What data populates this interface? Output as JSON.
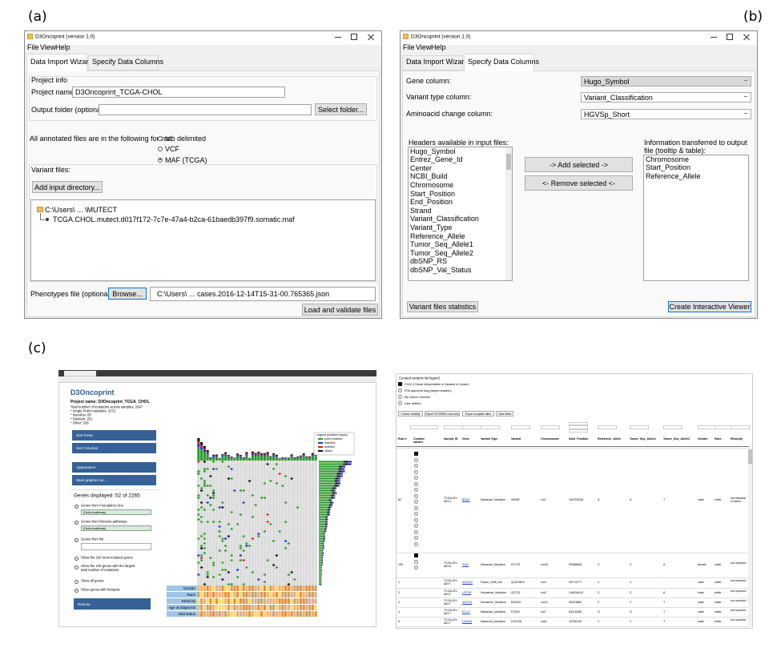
{
  "panel_labels": [
    "(a)",
    "(b)",
    "(c)"
  ],
  "import_window": {
    "title": "D3Oncoprint (version 1.0)",
    "menu": [
      "File",
      "View",
      "Help"
    ],
    "tabs": [
      "Data Import Wizard",
      "Specify Data Columns"
    ],
    "project_info": "Project info",
    "project_name_label": "Project name:",
    "project_name": "D3Oncoprint_TCGA-CHOL",
    "output_folder_label": "Output folder (optional):",
    "select_folder_button": "Select folder...",
    "format_label": "All annotated files are in the following format:",
    "formats": [
      "tab delimited",
      "VCF",
      "MAF (TCGA)"
    ],
    "variant_files_label": "Variant files:",
    "add_directory_button": "Add input directory...",
    "tree": [
      "C:\\Users\\  ...  \\MUTECT",
      "TCGA.CHOL.mutect.d017f172-7c7e-47a4-b2ca-61baedb397f9.somatic.maf"
    ],
    "phenotypes_label": "Phenotypes file (optional):",
    "browse_button": "Browse...",
    "phenotypes_path": "C:\\Users\\  ...  cases.2016-12-14T15-31-00.765365.json",
    "load_button": "Load and validate files"
  },
  "columns_window": {
    "title": "D3Oncoprint (version 1.0)",
    "menu": [
      "File",
      "View",
      "Help"
    ],
    "tabs": [
      "Data Import Wizard",
      "Specify Data Columns"
    ],
    "gene_column_label": "Gene column:",
    "gene_column": "Hugo_Symbol",
    "variant_type_label": "Variant type column:",
    "variant_type": "Variant_Classification",
    "aminoacid_label": "Aminoacid change column:",
    "aminoacid": "HGVSp_Short",
    "headers_label": "Headers available in input files:",
    "headers": [
      "Hugo_Symbol",
      "Entrez_Gene_Id",
      "Center",
      "NCBI_Build",
      "Chromosome",
      "Start_Position",
      "End_Position",
      "Strand",
      "Variant_Classification",
      "Variant_Type",
      "Reference_Allele",
      "Tumor_Seq_Allele1",
      "Tumor_Seq_Allele2",
      "dbSNP_RS",
      "dbSNP_Val_Status"
    ],
    "add_button": "-> Add selected ->",
    "remove_button": "<- Remove selected <-",
    "output_label": "Information transferred to output file (tooltip & table):",
    "output_fields": [
      "Chromosome",
      "Start_Position",
      "Reference_Allele"
    ],
    "statistics_button": "Variant files statistics",
    "create_button": "Create Interactive Viewer"
  },
  "oncoprint_view": {
    "title": "D3Oncoprint",
    "project": "Project name: D3Oncoprint_TCGA_CHOL",
    "stats": [
      "Total number of mutations across samples: 2647",
      "* Single Point mutations: 2072",
      "* Insertion: 85",
      "* Deletion: 251",
      "* Other: 239"
    ],
    "buttons": [
      "Sort Rows",
      "Sort Columns",
      "Appearance",
      "Save graphics as..."
    ],
    "genes_displayed": "Genes displayed: 52 of 2265",
    "options": [
      "Genes from Foundation One",
      "Genes from Biocarta pathways:",
      "Genes from list",
      "Show the 100 most mutated genes",
      "Show the 100 genes with the largest total number of mutations",
      "Show all genes",
      "Show genes with hotspots"
    ],
    "select": "(Select pathway)",
    "redraw": "Redraw",
    "legend_title": "Legend (mutation types)",
    "legend": [
      "point mutation",
      "insertion",
      "deletion",
      "others"
    ],
    "phenotypes": [
      "Gender",
      "Race",
      "Ethnicity",
      "Age at diagnosis",
      "Vital status"
    ]
  },
  "table_view": {
    "legend_title": "Curated variants list legend",
    "legend": [
      "CIViC (Clinical Interpretation of Variants in Cancer)",
      "FDA approved drug (target mutation)",
      "My Cancer Genome",
      "User defined"
    ],
    "buttons": [
      "Column visibility",
      "Export FILTERED rows only",
      "Export complete table",
      "Clear filters"
    ],
    "columns": [
      "Row #",
      "Curated variant",
      "Sample ID",
      "Gene",
      "Variant Type",
      "Variant",
      "Chromosome",
      "Start_Position",
      "Reference_Allele",
      "Tumor_Seq_Allele1",
      "Tumor_Seq_Allele2",
      "Gender",
      "Race",
      "Ethnicity"
    ],
    "rows": [
      [
        "82",
        "TCGA-ZH-A8Y4",
        "BRAF",
        "Missense_Mutation",
        "V600E",
        "chr7",
        "140753336",
        "A",
        "A",
        "T",
        "male",
        "white",
        "not hispanic or latino"
      ],
      [
        "100",
        "TCGA-ZH-A8Y6",
        "IDH2",
        "Missense_Mutation",
        "R172S",
        "chr15",
        "90088606",
        "C",
        "C",
        "A",
        "female",
        "white",
        "not reported"
      ],
      [
        "1",
        "TCGA-ZH-A8Y7",
        "ARID1A",
        "Frame_Shift_Del",
        "Q1519fs*9",
        "chr1",
        "26774777",
        "C",
        "C",
        "-",
        "male",
        "white",
        "not reported"
      ],
      [
        "2",
        "TCGA-ZH-A8Y7",
        "LRP1B",
        "Nonsense_Mutation",
        "Q271D",
        "chr2",
        "140516010",
        "C",
        "C",
        "A",
        "male",
        "white",
        "not reported"
      ],
      [
        "3",
        "TCGA-ZH-A8Y7",
        "KMT2D",
        "Nonsense_Mutation",
        "E5251K",
        "chr12",
        "49024860",
        "C",
        "C",
        "T",
        "male",
        "white",
        "not reported"
      ],
      [
        "4",
        "TCGA-ZH-A8Y7",
        "PCLO",
        "Missense_Mutation",
        "P1267I",
        "chr7",
        "83116285",
        "G",
        "G",
        "T",
        "male",
        "white",
        "not reported"
      ],
      [
        "5",
        "TCGA-ZH-A8Y7",
        "DNAH5",
        "Missense_Mutation",
        "D3313D",
        "chr5",
        "13769139",
        "C",
        "C",
        "T",
        "male",
        "white",
        "not reported"
      ]
    ]
  }
}
